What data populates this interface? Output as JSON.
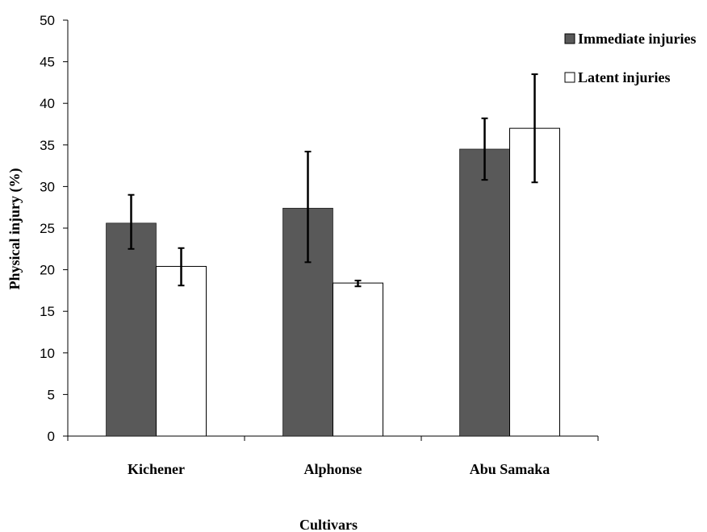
{
  "chart_data": {
    "type": "bar",
    "categories": [
      "Kichener",
      "Alphonse",
      "Abu Samaka"
    ],
    "series": [
      {
        "name": "Immediate injuries",
        "values": [
          25.6,
          27.4,
          34.5
        ],
        "error_low": [
          22.5,
          20.9,
          30.8
        ],
        "error_high": [
          29.0,
          34.2,
          38.2
        ],
        "color": "#595959"
      },
      {
        "name": "Latent injuries",
        "values": [
          20.4,
          18.4,
          37.0
        ],
        "error_low": [
          18.1,
          18.0,
          30.5
        ],
        "error_high": [
          22.6,
          18.7,
          43.5
        ],
        "color": "#ffffff"
      }
    ],
    "xlabel": "Cultivars",
    "ylabel": "Physical injury (%)",
    "ylim": [
      0,
      50
    ],
    "yticks": [
      "0",
      "5",
      "10",
      "15",
      "20",
      "25",
      "30",
      "35",
      "40",
      "45",
      "50"
    ],
    "grid": false,
    "legend_position": "top-right"
  }
}
